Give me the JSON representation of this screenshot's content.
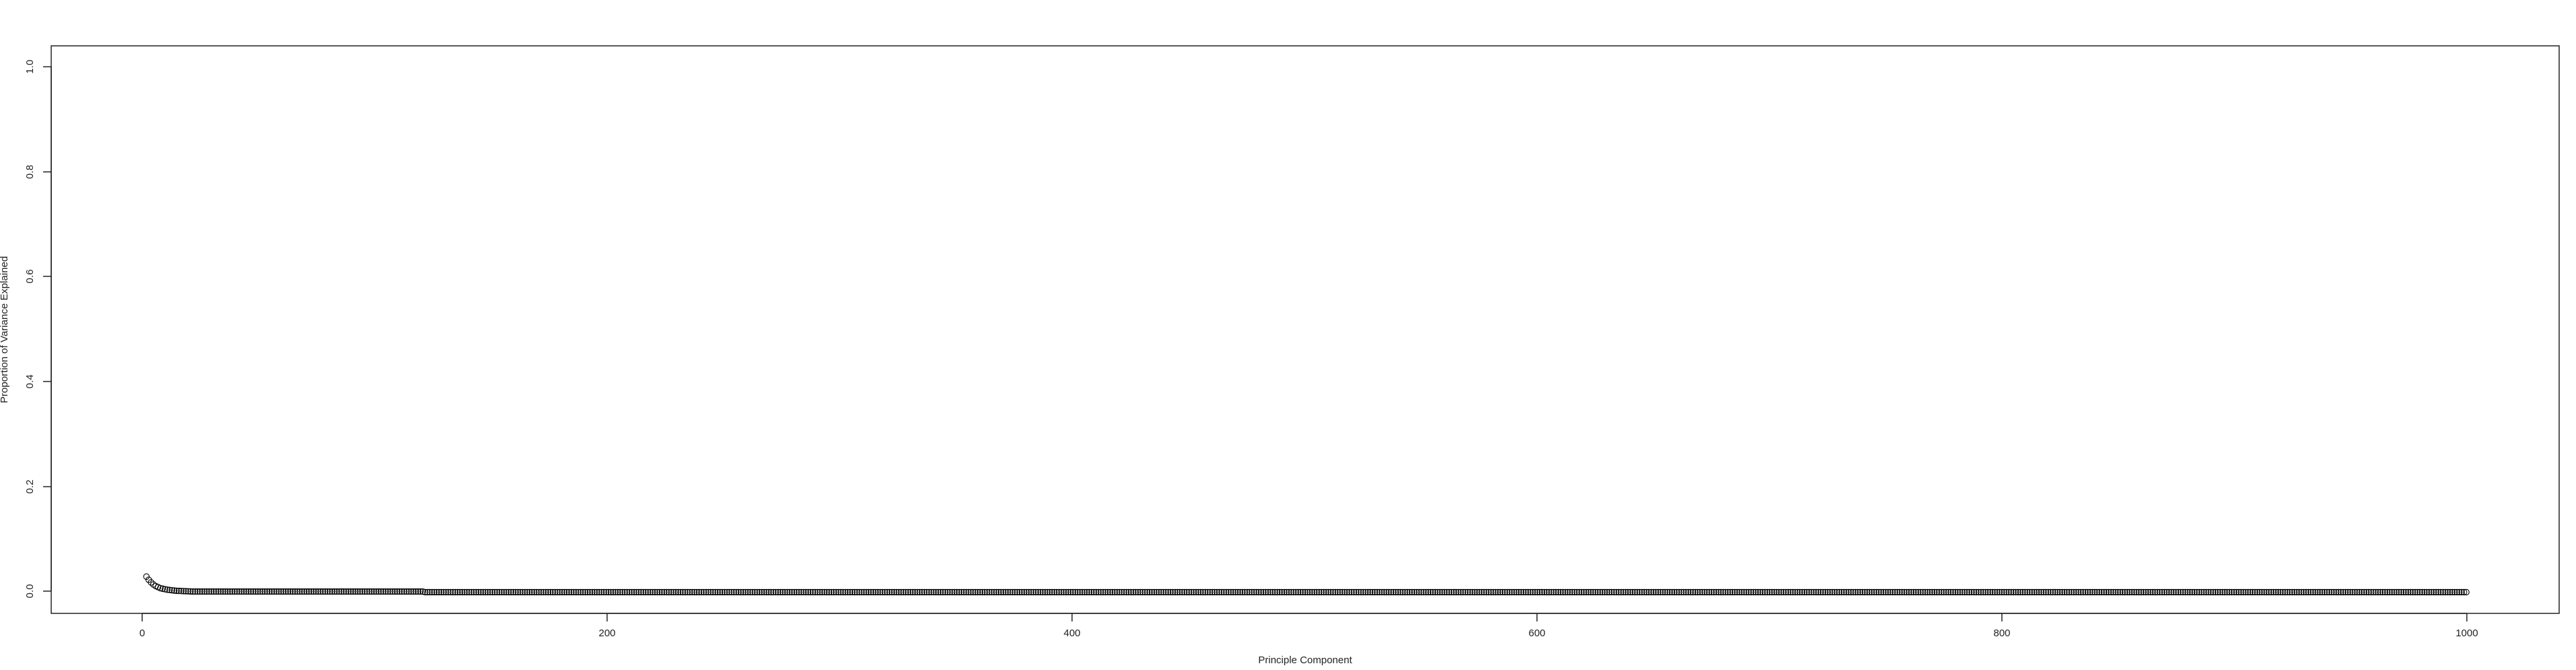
{
  "chart_data": {
    "type": "scatter",
    "title": "",
    "xlabel": "Principle Component",
    "ylabel": "Proportion of Variance Explained",
    "xlim": [
      -40,
      1040
    ],
    "ylim": [
      -0.04,
      1.04
    ],
    "xticks": [
      "0",
      "200",
      "400",
      "600",
      "800",
      "1000"
    ],
    "yticks": [
      "0.0",
      "0.2",
      "0.4",
      "0.6",
      "0.8",
      "1.0"
    ],
    "grid": false,
    "legend": "none",
    "n_points": 1000,
    "first_values": [
      0.03,
      0.024,
      0.019,
      0.015,
      0.012,
      0.01,
      0.008,
      0.007,
      0.006,
      0.005,
      0.0045,
      0.004,
      0.0035,
      0.003,
      0.0028,
      0.0026,
      0.0024,
      0.0022,
      0.002,
      0.0019
    ],
    "values_21_to_120": 0.0015,
    "values_121_to_1000": 0.0004,
    "marker": "open-circle",
    "marker_color": "#000000"
  }
}
